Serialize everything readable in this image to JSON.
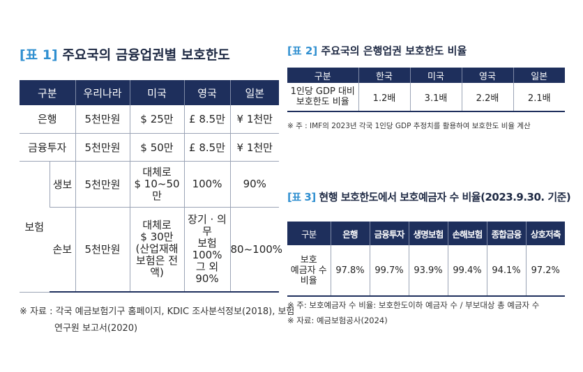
{
  "table1": {
    "tag": "[표 1]",
    "title": "주요국의 금융업권별 보호한도",
    "headers": [
      "구분",
      "우리나라",
      "미국",
      "영국",
      "일본"
    ],
    "rows": {
      "bank": [
        "은행",
        "5천만원",
        "$ 25만",
        "£ 8.5만",
        "¥ 1천만"
      ],
      "invest": [
        "금융투자",
        "5천만원",
        "$ 50만",
        "£ 8.5만",
        "¥ 1천만"
      ],
      "insurance_label": "보험",
      "life": [
        "생보",
        "5천만원",
        [
          "대체로",
          "$ 10~50만"
        ],
        "100%",
        "90%"
      ],
      "nonlife": [
        "손보",
        "5천만원",
        [
          "대체로",
          "$ 30만",
          "(산업재해",
          "보험은 전액)"
        ],
        [
          "장기 · 의무",
          "보험 100%",
          "그 외 90%"
        ],
        "80~100%"
      ]
    },
    "note_line1": "※ 자료 : 각국 예금보험기구 홈페이지, KDIC 조사분석정보(2018), 보험",
    "note_line2": "연구원 보고서(2020)"
  },
  "table2": {
    "tag": "[표 2]",
    "title": "주요국의 은행업권 보호한도 비율",
    "headers": [
      "구분",
      "한국",
      "미국",
      "영국",
      "일본"
    ],
    "row_label": [
      "1인당 GDP 대비",
      "보호한도 비율"
    ],
    "values": [
      "1.2배",
      "3.1배",
      "2.2배",
      "2.1배"
    ],
    "note": "※ 주 : IMF의 2023년 각국 1인당 GDP 추정치를 활용하여 보호한도 비율 계산"
  },
  "table3": {
    "tag": "[표 3]",
    "title": "현행 보호한도에서 보호예금자 수 비율(2023.9.30. 기준)",
    "headers": [
      "구분",
      "은행",
      "금융투자",
      "생명보험",
      "손해보험",
      "종합금융",
      "상호저축"
    ],
    "row_label": [
      "보호",
      "예금자 수",
      "비율"
    ],
    "values": [
      "97.8%",
      "99.7%",
      "93.9%",
      "99.4%",
      "94.1%",
      "97.2%"
    ],
    "note1": "※ 주: 보호예금자 수 비율: 보호한도이하 예금자 수 / 부보대상 총 예금자 수",
    "note2": "※ 자료: 예금보험공사(2024)"
  }
}
